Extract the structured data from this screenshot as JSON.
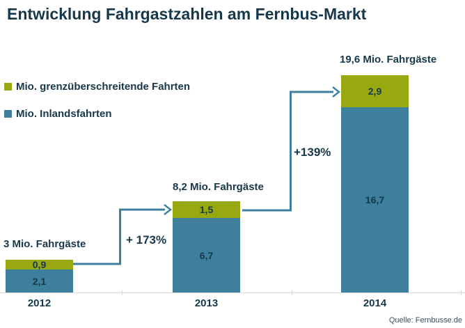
{
  "title": "Entwicklung Fahrgastzahlen am Fernbus-Markt",
  "source": "Quelle: Fernbusse.de",
  "colors": {
    "green": "#98a811",
    "blue": "#3d7f9c",
    "text_dark": "#17384a",
    "axis": "#d9d9d9"
  },
  "legend": {
    "items": [
      {
        "label": "Mio. grenzüberschreitende Fahrten",
        "swatch": "green"
      },
      {
        "label": "Mio. Inlandsfahrten",
        "swatch": "blue"
      }
    ]
  },
  "chart_data": {
    "type": "bar",
    "stacked": true,
    "title": "Entwicklung Fahrgastzahlen am Fernbus-Markt",
    "categories": [
      "2012",
      "2013",
      "2014"
    ],
    "series": [
      {
        "name": "Mio. grenzüberschreitende Fahrten",
        "color": "#98a811",
        "values": [
          0.9,
          1.5,
          2.9
        ],
        "display_values": [
          "0,9",
          "1,5",
          "2,9"
        ]
      },
      {
        "name": "Mio. Inlandsfahrten",
        "color": "#3d7f9c",
        "values": [
          2.1,
          6.7,
          16.7
        ],
        "display_values": [
          "2,1",
          "6,7",
          "16,7"
        ]
      }
    ],
    "totals": [
      3.0,
      8.2,
      19.6
    ],
    "total_labels": [
      "3 Mio. Fahrgäste",
      "8,2 Mio. Fahrgäste",
      "19,6 Mio. Fahrgäste"
    ],
    "growth_labels": [
      "+ 173%",
      "+139%"
    ],
    "ylim": [
      0,
      21
    ],
    "grid": false,
    "legend_position": "upper-left"
  }
}
